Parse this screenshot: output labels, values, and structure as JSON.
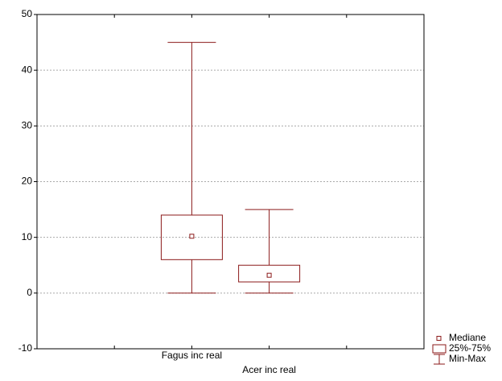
{
  "chart_data": {
    "type": "box",
    "categories": [
      "Fagus inc real",
      "Acer inc real"
    ],
    "min": [
      0,
      0
    ],
    "q1": [
      6,
      2
    ],
    "median": [
      10.2,
      3.2
    ],
    "q3": [
      14,
      5
    ],
    "max": [
      45,
      15
    ],
    "color": "#8b1a1a",
    "ylim": [
      -10,
      50
    ],
    "yticks": [
      -10,
      0,
      10,
      20,
      30,
      40,
      50
    ],
    "grid": true,
    "legend": [
      "Mediane",
      "25%-75%",
      "Min-Max"
    ]
  }
}
